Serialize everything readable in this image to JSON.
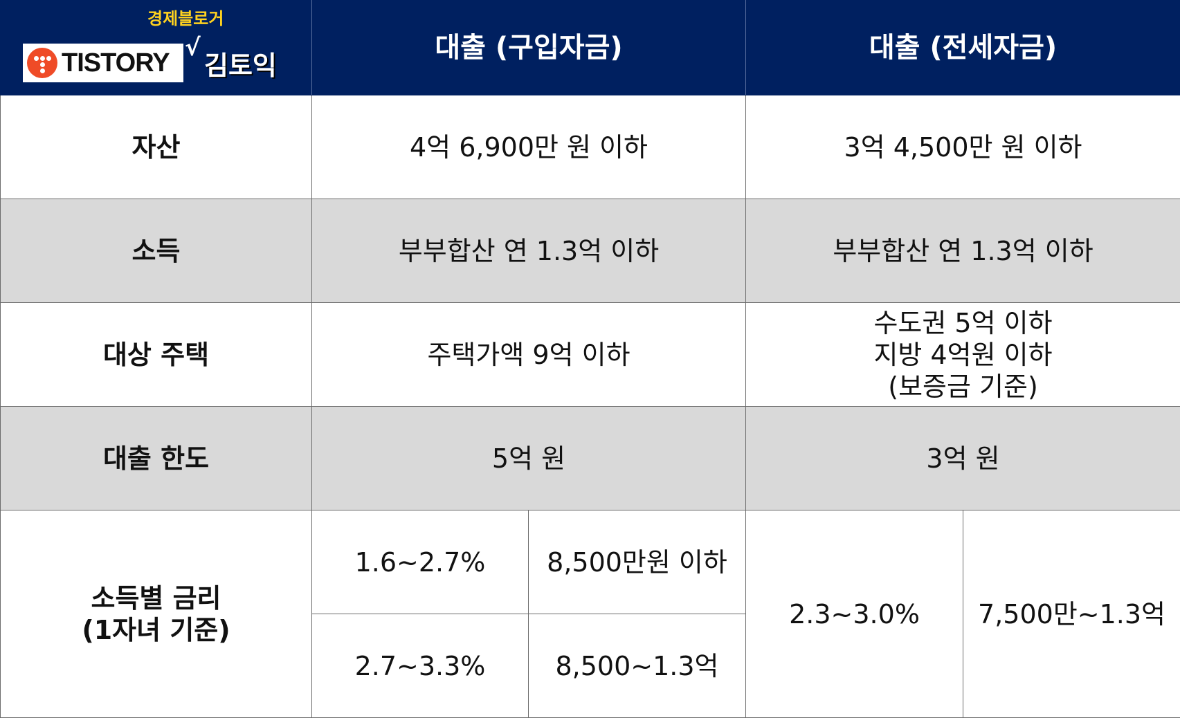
{
  "logo": {
    "tagline": "경제블로거",
    "brand": "TISTORY",
    "check": "√",
    "author": "김토익",
    "accent": "#ef4b27",
    "tagline_color": "#ffd21f"
  },
  "colors": {
    "header_bg": "#002060",
    "header_text": "#ffffff",
    "gray_row": "#d9d9d9"
  },
  "headers": {
    "purchase": "대출 (구입자금)",
    "jeonse": "대출 (전세자금)"
  },
  "rows": {
    "assets": {
      "label": "자산",
      "purchase": "4억 6,900만 원 이하",
      "jeonse": "3억 4,500만 원 이하"
    },
    "income": {
      "label": "소득",
      "purchase": "부부합산 연 1.3억 이하",
      "jeonse": "부부합산 연 1.3억 이하"
    },
    "housing": {
      "label": "대상 주택",
      "purchase": "주택가액 9억 이하",
      "jeonse_lines": [
        "수도권 5억 이하",
        "지방 4억원 이하",
        "(보증금 기준)"
      ]
    },
    "limit": {
      "label": "대출 한도",
      "purchase": "5억 원",
      "jeonse": "3억 원"
    },
    "rates": {
      "label_lines": [
        "소득별 금리",
        "(1자녀 기준)"
      ],
      "purchase": [
        {
          "rate": "1.6~2.7%",
          "income": "8,500만원 이하"
        },
        {
          "rate": "2.7~3.3%",
          "income": "8,500~1.3억"
        }
      ],
      "jeonse": {
        "rate": "2.3~3.0%",
        "income": "7,500만~1.3억"
      }
    }
  }
}
